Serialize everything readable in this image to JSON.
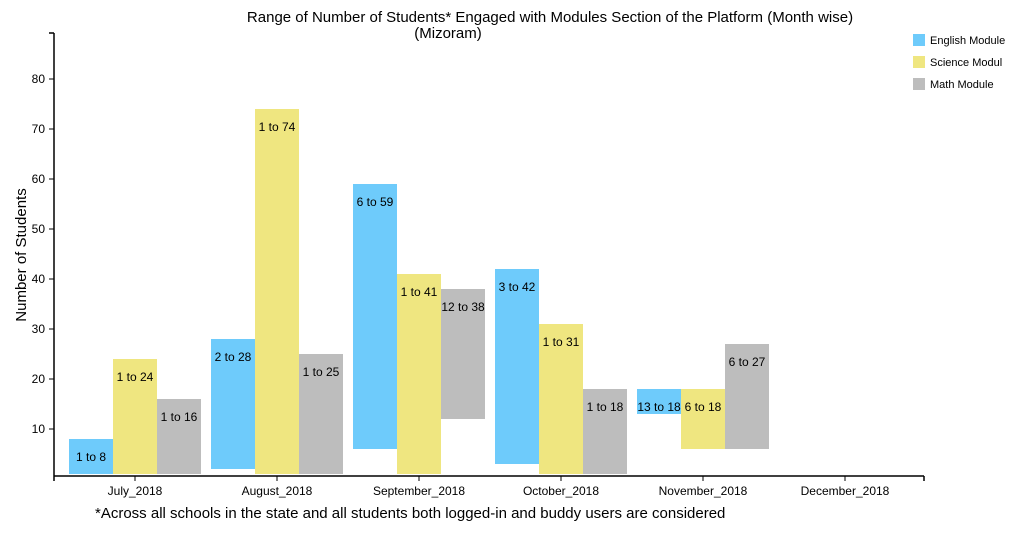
{
  "chart_data": {
    "type": "bar",
    "subtype": "floating-range",
    "title": "Range of Number of Students* Engaged with Modules Section of the Platform (Month wise)",
    "subtitle": "(Mizoram)",
    "ylabel": "Number of Students",
    "xlabel": "",
    "ylim": [
      0,
      85
    ],
    "yticks": [
      10,
      20,
      30,
      40,
      50,
      60,
      70,
      80
    ],
    "grid": false,
    "legend_position": "top-right",
    "categories": [
      "July_2018",
      "August_2018",
      "September_2018",
      "October_2018",
      "November_2018",
      "December_2018"
    ],
    "series": [
      {
        "name": "English Module",
        "legend_label": "English Module",
        "color": "#6ecbfb",
        "ranges": [
          [
            1,
            8
          ],
          [
            2,
            28
          ],
          [
            6,
            59
          ],
          [
            3,
            42
          ],
          [
            13,
            18
          ],
          null
        ],
        "labels": [
          "1 to 8",
          "2 to 28",
          "6 to 59",
          "3 to 42",
          "13 to 18",
          ""
        ]
      },
      {
        "name": "Science Module",
        "legend_label": "Science Modul",
        "color": "#efe680",
        "ranges": [
          [
            1,
            24
          ],
          [
            1,
            74
          ],
          [
            1,
            41
          ],
          [
            1,
            31
          ],
          [
            6,
            18
          ],
          null
        ],
        "labels": [
          "1 to 24",
          "1 to 74",
          "1 to 41",
          "1 to 31",
          "6 to 18",
          ""
        ]
      },
      {
        "name": "Math Module",
        "legend_label": "Math Module",
        "color": "#bdbdbd",
        "ranges": [
          [
            1,
            16
          ],
          [
            1,
            25
          ],
          [
            12,
            38
          ],
          [
            1,
            18
          ],
          [
            6,
            27
          ],
          null
        ],
        "labels": [
          "1 to 16",
          "1 to 25",
          "12 to 38",
          "1 to 18",
          "6 to 27",
          ""
        ]
      }
    ],
    "footnote": "*Across all schools in the state and all students both logged-in and buddy users are considered"
  }
}
